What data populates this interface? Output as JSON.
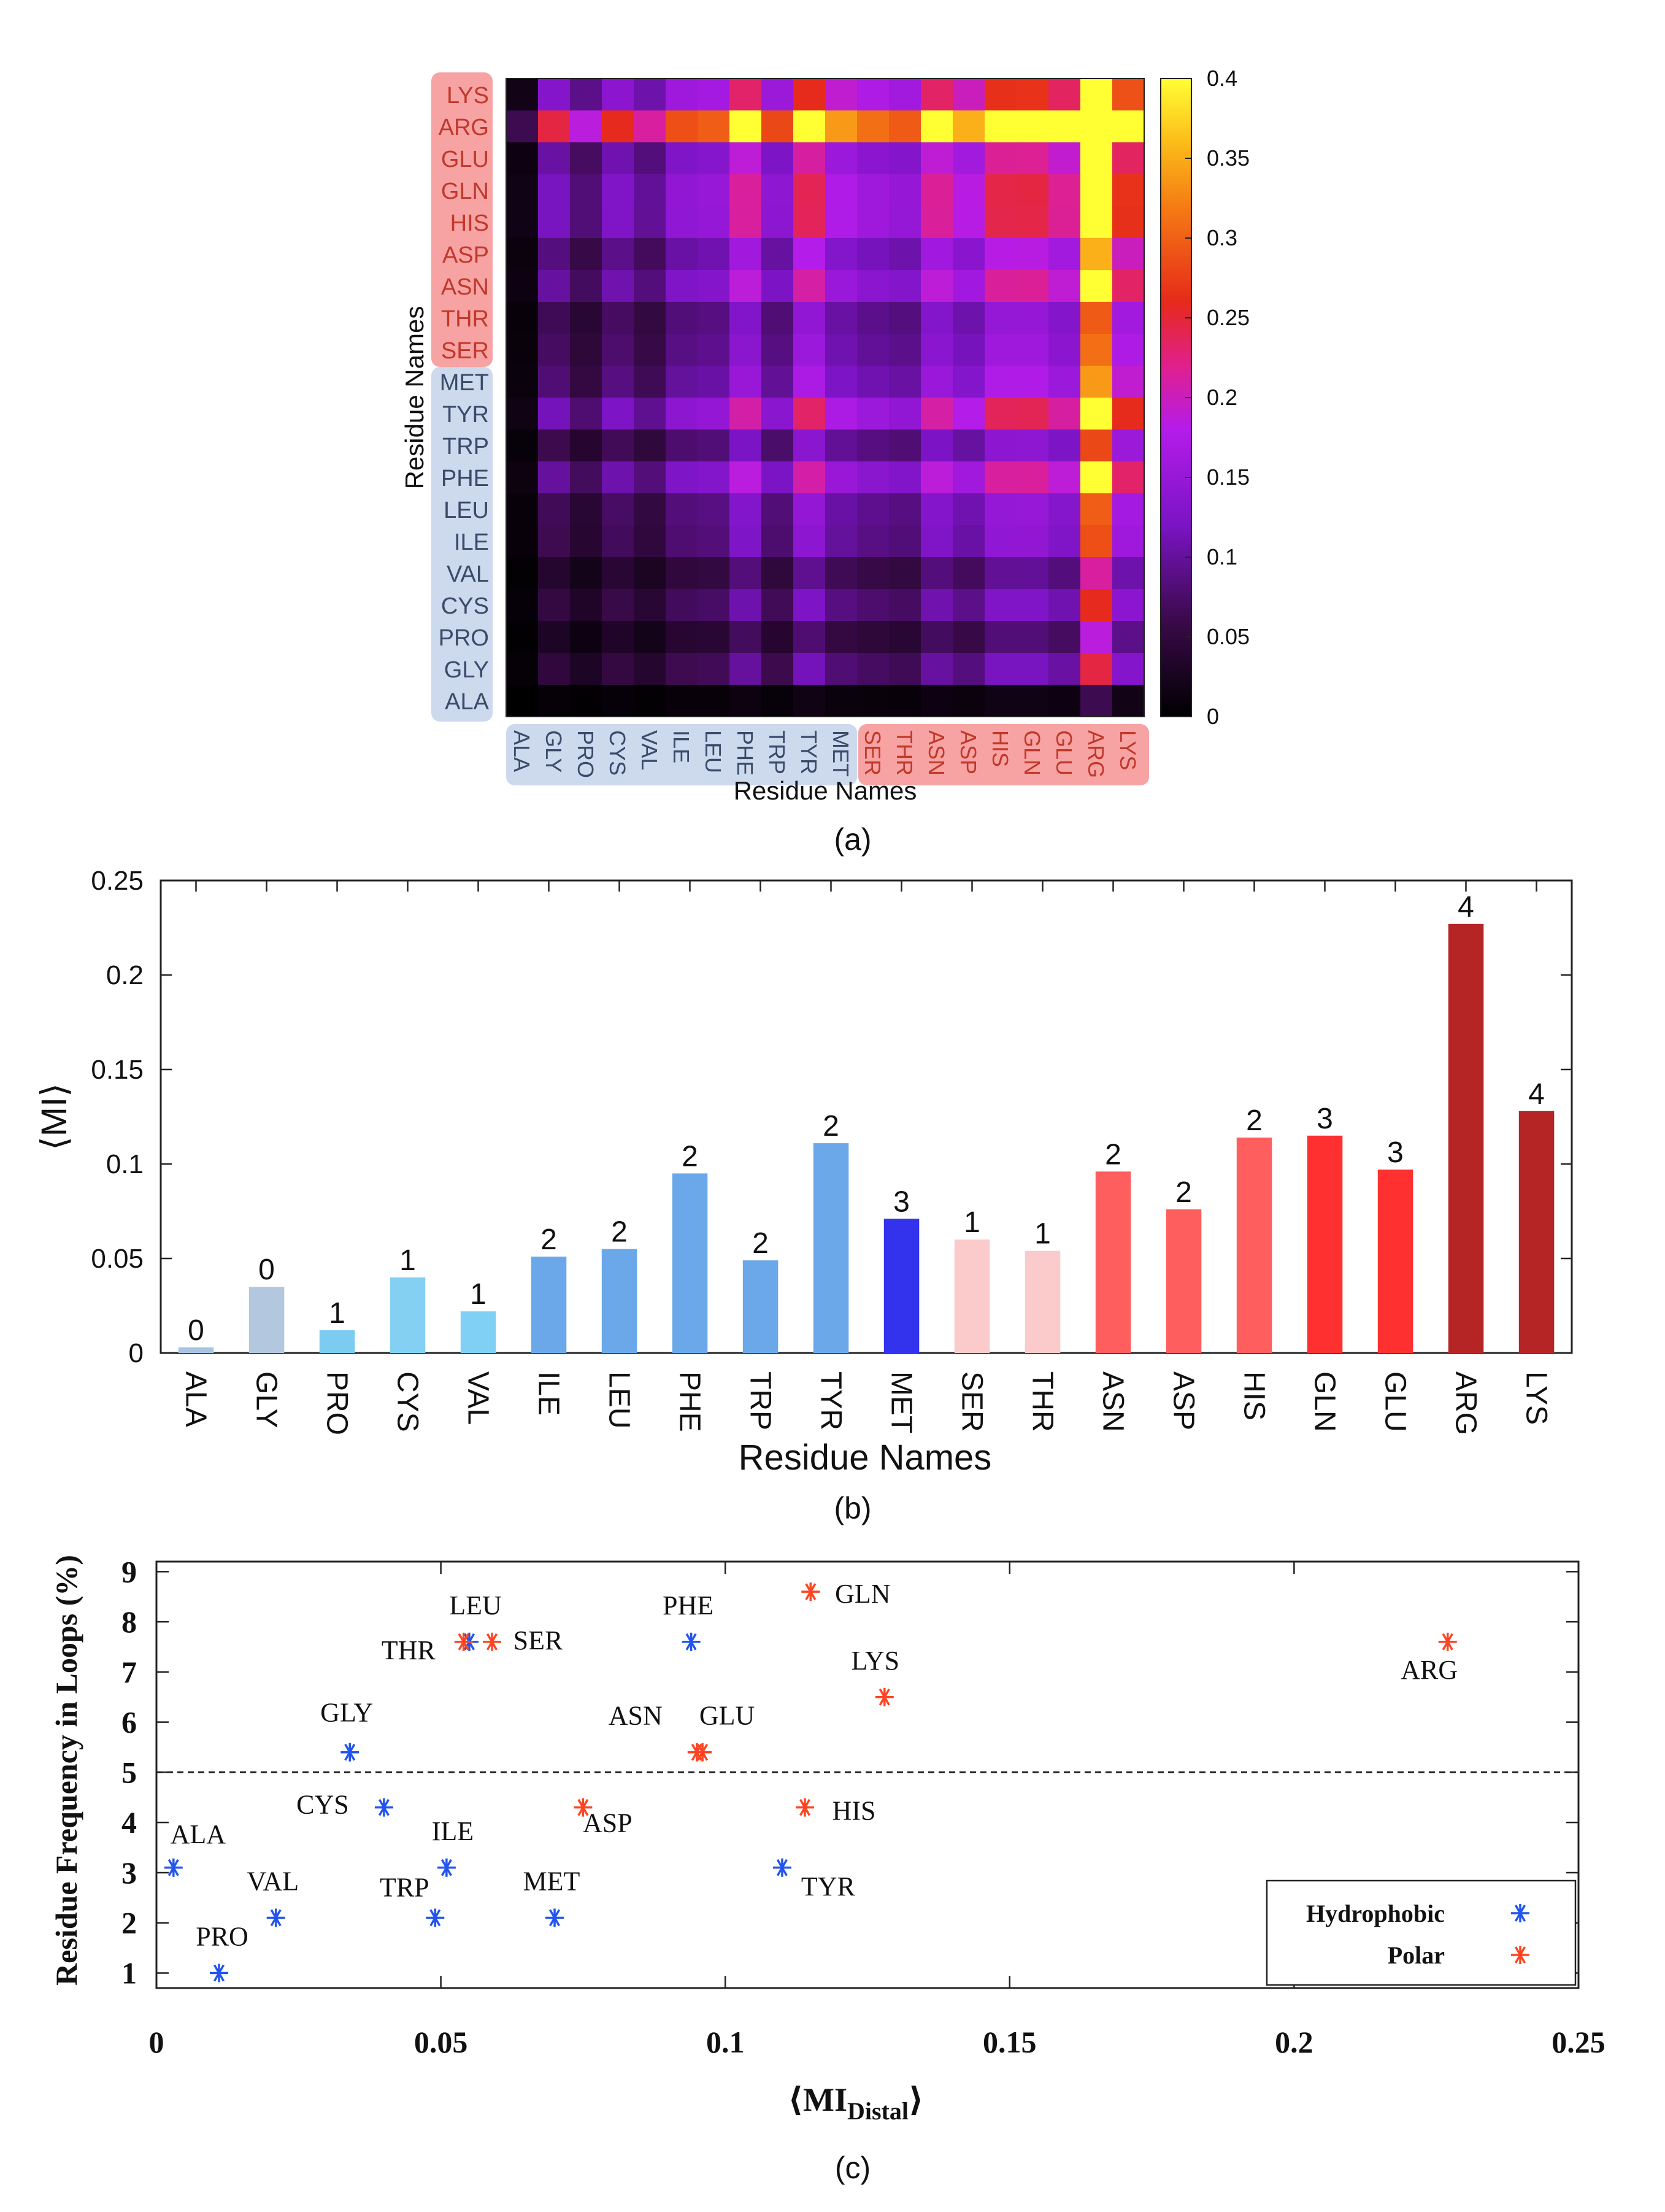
{
  "figure": {
    "panel_labels": [
      "(a)",
      "(b)",
      "(c)"
    ]
  },
  "chart_data": [
    {
      "type": "heatmap",
      "panel": "(a)",
      "xlabel": "Residue Names",
      "ylabel": "Residue Names",
      "residues": [
        "ALA",
        "GLY",
        "PRO",
        "CYS",
        "VAL",
        "ILE",
        "LEU",
        "PHE",
        "TRP",
        "TYR",
        "MET",
        "SER",
        "THR",
        "ASN",
        "ASP",
        "HIS",
        "GLN",
        "GLU",
        "ARG",
        "LYS"
      ],
      "groups": {
        "hydrophobic": [
          "ALA",
          "GLY",
          "PRO",
          "CYS",
          "VAL",
          "ILE",
          "LEU",
          "PHE",
          "TRP",
          "TYR",
          "MET"
        ],
        "polar": [
          "SER",
          "THR",
          "ASN",
          "ASP",
          "HIS",
          "GLN",
          "GLU",
          "ARG",
          "LYS"
        ]
      },
      "colorbar": {
        "range": [
          0,
          0.4
        ],
        "ticks": [
          0,
          0.05,
          0.1,
          0.15,
          0.2,
          0.25,
          0.3,
          0.35,
          0.4
        ],
        "tick_labels": [
          "0",
          "0.05",
          "0.1",
          "0.15",
          "0.2",
          "0.25",
          "0.3",
          "0.35",
          "0.4"
        ]
      },
      "colors": {
        "hydrophobic_bg": "#cdd9ec",
        "polar_bg": "#f7a3a3",
        "hydrophobic_text": "#3a4a6a",
        "polar_text": "#c0392b"
      }
    },
    {
      "type": "bar",
      "panel": "(b)",
      "categories": [
        "ALA",
        "GLY",
        "PRO",
        "CYS",
        "VAL",
        "ILE",
        "LEU",
        "PHE",
        "TRP",
        "TYR",
        "MET",
        "SER",
        "THR",
        "ASN",
        "ASP",
        "HIS",
        "GLN",
        "GLU",
        "ARG",
        "LYS"
      ],
      "values": [
        0.003,
        0.035,
        0.012,
        0.04,
        0.022,
        0.051,
        0.055,
        0.095,
        0.049,
        0.111,
        0.071,
        0.06,
        0.054,
        0.096,
        0.076,
        0.114,
        0.115,
        0.097,
        0.227,
        0.128
      ],
      "data_labels": [
        "0",
        "0",
        "1",
        "1",
        "1",
        "2",
        "2",
        "2",
        "2",
        "2",
        "3",
        "1",
        "1",
        "2",
        "2",
        "2",
        "3",
        "3",
        "4",
        "4"
      ],
      "colors": [
        "#a8c4e2",
        "#b3c7de",
        "#7ccbf0",
        "#84d0f3",
        "#80cff4",
        "#6aa8ea",
        "#6aa8ea",
        "#6aa8ea",
        "#6aa8ea",
        "#6aa8ea",
        "#3333ee",
        "#fbcaca",
        "#fbcaca",
        "#ff5e5e",
        "#ff5e5e",
        "#ff5e5e",
        "#ff3030",
        "#ff3030",
        "#b52525",
        "#b52525"
      ],
      "xlabel": "Residue Names",
      "ylabel": "⟨MI⟩",
      "ylim": [
        0,
        0.25
      ],
      "yticks": [
        0,
        0.05,
        0.1,
        0.15,
        0.2,
        0.25
      ],
      "ytick_labels": [
        "0",
        "0.05",
        "0.1",
        "0.15",
        "0.2",
        "0.25"
      ]
    },
    {
      "type": "scatter",
      "panel": "(c)",
      "xlabel_main": "⟨MI",
      "xlabel_sub": "Distal",
      "xlabel_close": "⟩",
      "ylabel": "Residue Frequency in Loops (%)",
      "xlim": [
        0,
        0.25
      ],
      "ylim": [
        1,
        9
      ],
      "xticks": [
        0,
        0.05,
        0.1,
        0.15,
        0.2,
        0.25
      ],
      "xtick_labels": [
        "0",
        "0.05",
        "0.1",
        "0.15",
        "0.2",
        "0.25"
      ],
      "yticks": [
        1,
        2,
        3,
        4,
        5,
        6,
        7,
        8,
        9
      ],
      "ytick_labels": [
        "1",
        "2",
        "3",
        "4",
        "5",
        "6",
        "7",
        "8",
        "9"
      ],
      "threshold_y": 5,
      "series": [
        {
          "name": "Hydrophobic",
          "color": "#2255ee",
          "points": [
            {
              "label": "ALA",
              "x": 0.003,
              "y": 3.1
            },
            {
              "label": "GLY",
              "x": 0.034,
              "y": 5.4
            },
            {
              "label": "PRO",
              "x": 0.011,
              "y": 1.0
            },
            {
              "label": "CYS",
              "x": 0.04,
              "y": 4.3
            },
            {
              "label": "VAL",
              "x": 0.021,
              "y": 2.1
            },
            {
              "label": "ILE",
              "x": 0.051,
              "y": 3.1
            },
            {
              "label": "LEU",
              "x": 0.055,
              "y": 7.6
            },
            {
              "label": "PHE",
              "x": 0.094,
              "y": 7.6
            },
            {
              "label": "TRP",
              "x": 0.049,
              "y": 2.1
            },
            {
              "label": "TYR",
              "x": 0.11,
              "y": 3.1
            },
            {
              "label": "MET",
              "x": 0.07,
              "y": 2.1
            }
          ]
        },
        {
          "name": "Polar",
          "color": "#ff4422",
          "points": [
            {
              "label": "SER",
              "x": 0.059,
              "y": 7.6
            },
            {
              "label": "THR",
              "x": 0.054,
              "y": 7.6
            },
            {
              "label": "ASN",
              "x": 0.095,
              "y": 5.4
            },
            {
              "label": "ASP",
              "x": 0.075,
              "y": 4.3
            },
            {
              "label": "HIS",
              "x": 0.114,
              "y": 4.3
            },
            {
              "label": "GLN",
              "x": 0.115,
              "y": 8.6
            },
            {
              "label": "GLU",
              "x": 0.096,
              "y": 5.4
            },
            {
              "label": "ARG",
              "x": 0.227,
              "y": 7.6
            },
            {
              "label": "LYS",
              "x": 0.128,
              "y": 6.5
            }
          ]
        }
      ],
      "legend": [
        "Hydrophobic",
        "Polar"
      ]
    }
  ]
}
